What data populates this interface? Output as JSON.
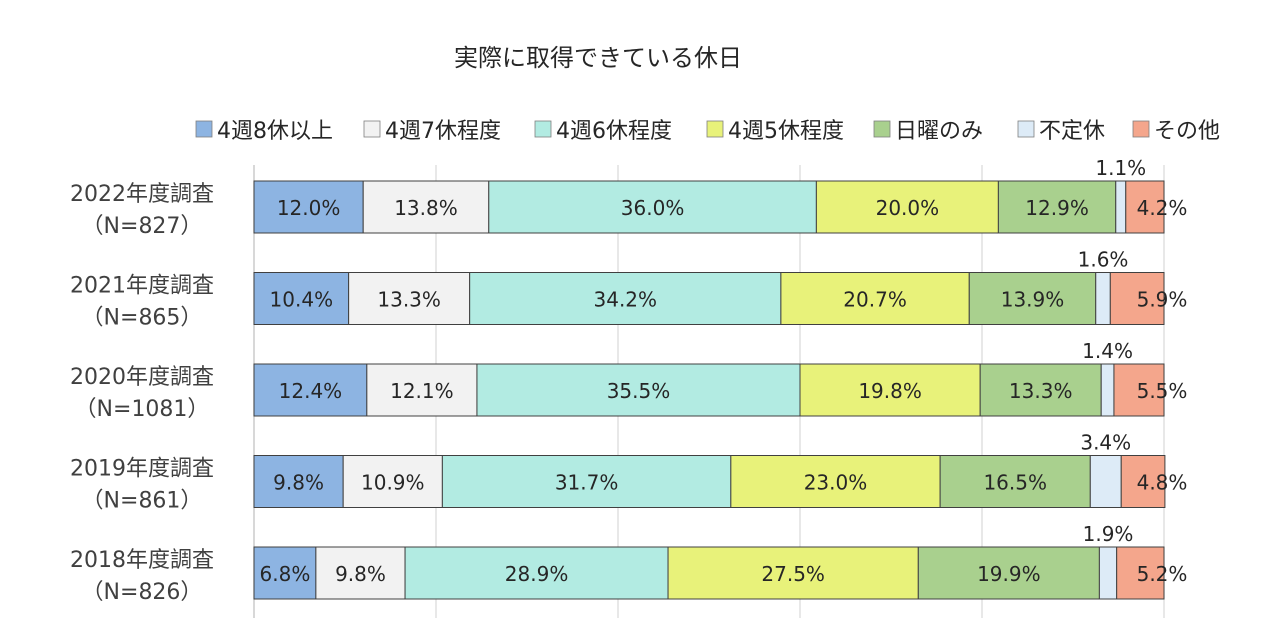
{
  "chart_data": {
    "type": "bar",
    "orientation": "horizontal",
    "stacked": "percent",
    "title": "実際に取得できている休日",
    "xlim": [
      0,
      100
    ],
    "grid": true,
    "legend": "top",
    "categories": [
      [
        "2022年度調査",
        "（N=827）"
      ],
      [
        "2021年度調査",
        "（N=865）"
      ],
      [
        "2020年度調査",
        "（N=1081）"
      ],
      [
        "2019年度調査",
        "（N=861）"
      ],
      [
        "2018年度調査",
        "（N=826）"
      ]
    ],
    "series": [
      {
        "name": "4週8休以上",
        "color": "#8DB4E2",
        "values": [
          12.0,
          10.4,
          12.4,
          9.8,
          6.8
        ]
      },
      {
        "name": "4週7休程度",
        "color": "#F2F2F2",
        "values": [
          13.8,
          13.3,
          12.1,
          10.9,
          9.8
        ]
      },
      {
        "name": "4週6休程度",
        "color": "#B2EBE2",
        "values": [
          36.0,
          34.2,
          35.5,
          31.7,
          28.9
        ]
      },
      {
        "name": "4週5休程度",
        "color": "#E8F27A",
        "values": [
          20.0,
          20.7,
          19.8,
          23.0,
          27.5
        ]
      },
      {
        "name": "日曜のみ",
        "color": "#A9D08E",
        "values": [
          12.9,
          13.9,
          13.3,
          16.5,
          19.9
        ]
      },
      {
        "name": "不定休",
        "color": "#DDEBF7",
        "values": [
          1.1,
          1.6,
          1.4,
          3.4,
          1.9
        ]
      },
      {
        "name": "その他",
        "color": "#F4A68C",
        "values": [
          4.2,
          5.9,
          5.5,
          4.8,
          5.2
        ]
      }
    ],
    "value_labels": [
      [
        "12.0%",
        "13.8%",
        "36.0%",
        "20.0%",
        "12.9%",
        "1.1%",
        "4.2%"
      ],
      [
        "10.4%",
        "13.3%",
        "34.2%",
        "20.7%",
        "13.9%",
        "1.6%",
        "5.9%"
      ],
      [
        "12.4%",
        "12.1%",
        "35.5%",
        "19.8%",
        "13.3%",
        "1.4%",
        "5.5%"
      ],
      [
        "9.8%",
        "10.9%",
        "31.7%",
        "23.0%",
        "16.5%",
        "3.4%",
        "4.8%"
      ],
      [
        "6.8%",
        "9.8%",
        "28.9%",
        "27.5%",
        "19.9%",
        "1.9%",
        "5.2%"
      ]
    ]
  }
}
